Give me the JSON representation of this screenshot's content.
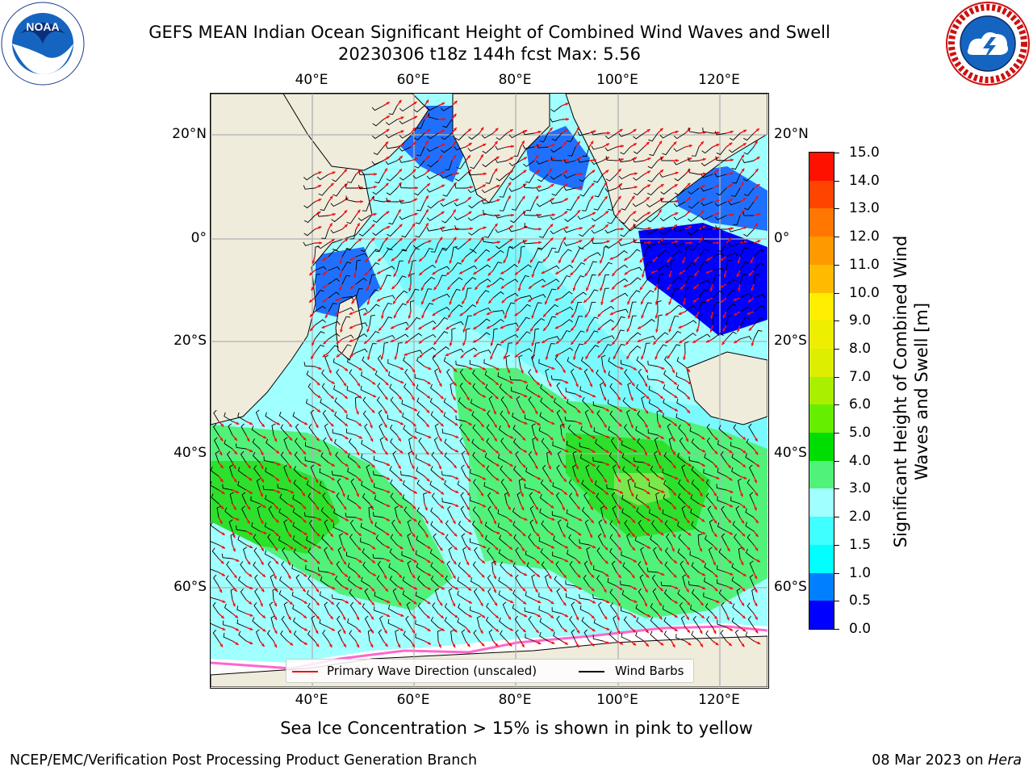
{
  "header": {
    "title_line1": "GEFS MEAN Indian Ocean Significant Height of Combined Wind Waves and Swell",
    "title_line2": "20230306 t18z 144h fcst   Max: 5.56"
  },
  "logos": {
    "noaa": {
      "icon": "noaa-logo",
      "text": "NOAA",
      "ring_text": "NATIONAL OCEANIC AND ATMOSPHERIC ADMINISTRATION · U.S. DEPARTMENT OF COMMERCE"
    },
    "nws": {
      "icon": "national-weather-service-logo",
      "ring_text": "NATIONAL WEATHER SERVICE"
    }
  },
  "map": {
    "projection": "lat-lon",
    "lon_range": [
      20,
      130
    ],
    "lat_range": [
      -75,
      28
    ],
    "grid": true,
    "lon_ticks": [
      "40°E",
      "60°E",
      "80°E",
      "100°E",
      "120°E"
    ],
    "lat_ticks": [
      "20°N",
      "0°",
      "20°S",
      "40°S",
      "60°S"
    ],
    "colors": {
      "land": "#efecdc",
      "gridlines": "#b0b0b0",
      "wave_arrows": "#ee1111",
      "wind_barbs": "#000000",
      "sea_ice": "#ff66cc"
    }
  },
  "colorbar": {
    "label": "Significant Height of Combined Wind Waves and Swell [m]",
    "levels": [
      "0.0",
      "0.5",
      "1.0",
      "1.5",
      "2.0",
      "3.0",
      "4.0",
      "5.0",
      "6.0",
      "7.0",
      "8.0",
      "9.0",
      "10.0",
      "11.0",
      "12.0",
      "13.0",
      "14.0",
      "15.0"
    ],
    "colors": [
      "#0000ff",
      "#0080ff",
      "#00ffff",
      "#40ffff",
      "#a0ffff",
      "#50f27a",
      "#00dd00",
      "#66ee00",
      "#aaee00",
      "#ddee00",
      "#eeee00",
      "#ffee00",
      "#ffbb00",
      "#ff9900",
      "#ff7700",
      "#ff4400",
      "#ff1100"
    ]
  },
  "legend": {
    "items": [
      {
        "label": "Primary Wave Direction (unscaled)",
        "color": "#ee1111"
      },
      {
        "label": "Wind Barbs",
        "color": "#000000"
      }
    ]
  },
  "footer": {
    "sea_ice_note": "Sea Ice Concentration > 15% is shown in pink to yellow",
    "producer": "NCEP/EMC/Verification Post Processing Product Generation Branch",
    "date": "08 Mar 2023",
    "on_word": " on ",
    "host": "Hera"
  }
}
